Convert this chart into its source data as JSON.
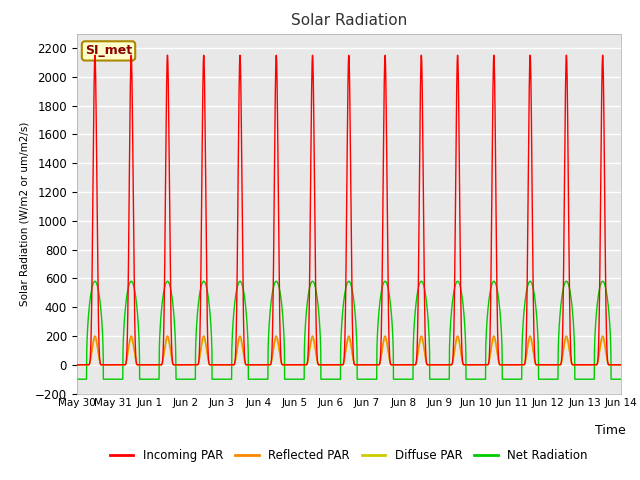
{
  "title": "Solar Radiation",
  "ylabel": "Solar Radiation (W/m2 or um/m2/s)",
  "xlabel": "Time",
  "ylim": [
    -200,
    2300
  ],
  "yticks": [
    -200,
    0,
    200,
    400,
    600,
    800,
    1000,
    1200,
    1400,
    1600,
    1800,
    2000,
    2200
  ],
  "bg_color": "#e8e8e8",
  "fig_color": "#ffffff",
  "station_label": "SI_met",
  "legend": [
    "Incoming PAR",
    "Reflected PAR",
    "Diffuse PAR",
    "Net Radiation"
  ],
  "line_colors": [
    "#ff0000",
    "#ff8800",
    "#cccc00",
    "#00cc00"
  ],
  "n_days": 15,
  "incoming_peak": 2150,
  "reflected_peak": 200,
  "diffuse_peak": 180,
  "net_peak": 580,
  "net_night": -100
}
